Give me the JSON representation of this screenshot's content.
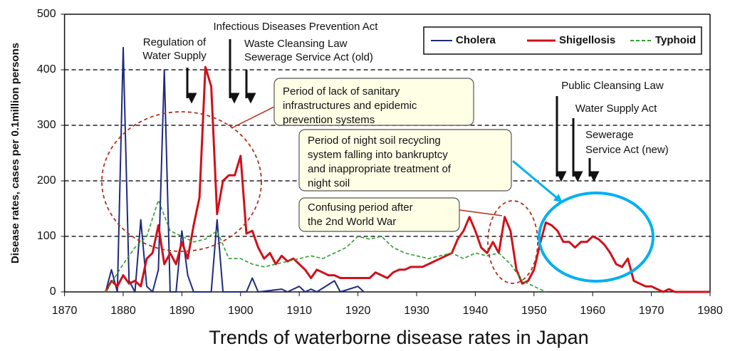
{
  "chart_data": {
    "type": "line",
    "title": "Trends of waterborne disease rates in Japan",
    "y_label": "Disease rates, cases per 0.1million persons",
    "xlim": [
      1870,
      1980
    ],
    "xticks": [
      1870,
      1880,
      1890,
      1900,
      1910,
      1920,
      1930,
      1940,
      1950,
      1960,
      1970,
      1980
    ],
    "ylim": [
      0,
      500
    ],
    "yticks": [
      0,
      100,
      200,
      300,
      400,
      500
    ],
    "grid": true,
    "series": [
      {
        "name": "Cholera",
        "color": "#1f2a80",
        "style": "solid",
        "x": [
          1877,
          1878,
          1879,
          1880,
          1881,
          1882,
          1883,
          1884,
          1885,
          1886,
          1887,
          1888,
          1889,
          1890,
          1891,
          1892,
          1895,
          1896,
          1897,
          1901,
          1902,
          1903,
          1907,
          1908,
          1910,
          1911,
          1912,
          1913,
          1916,
          1917,
          1920,
          1921
        ],
        "values": [
          0,
          40,
          0,
          440,
          20,
          0,
          130,
          10,
          0,
          40,
          400,
          0,
          0,
          110,
          30,
          0,
          0,
          130,
          0,
          0,
          25,
          0,
          5,
          0,
          10,
          0,
          5,
          0,
          20,
          0,
          10,
          0
        ]
      },
      {
        "name": "Shigellosis",
        "color": "#d0101a",
        "style": "solid",
        "x": [
          1877,
          1878,
          1879,
          1880,
          1881,
          1882,
          1883,
          1884,
          1885,
          1886,
          1887,
          1888,
          1889,
          1890,
          1891,
          1892,
          1893,
          1894,
          1895,
          1896,
          1897,
          1898,
          1899,
          1900,
          1901,
          1902,
          1903,
          1904,
          1905,
          1906,
          1907,
          1908,
          1909,
          1910,
          1911,
          1912,
          1913,
          1914,
          1915,
          1916,
          1917,
          1918,
          1919,
          1920,
          1921,
          1922,
          1923,
          1924,
          1925,
          1926,
          1927,
          1928,
          1929,
          1930,
          1931,
          1932,
          1933,
          1934,
          1935,
          1936,
          1937,
          1938,
          1939,
          1940,
          1941,
          1942,
          1943,
          1944,
          1945,
          1946,
          1947,
          1948,
          1949,
          1950,
          1951,
          1952,
          1953,
          1954,
          1955,
          1956,
          1957,
          1958,
          1959,
          1960,
          1961,
          1962,
          1963,
          1964,
          1965,
          1966,
          1967,
          1968,
          1969,
          1970,
          1971,
          1972,
          1973,
          1974,
          1980
        ],
        "values": [
          0,
          20,
          10,
          30,
          15,
          20,
          10,
          60,
          70,
          120,
          50,
          70,
          50,
          90,
          60,
          120,
          170,
          405,
          370,
          140,
          200,
          210,
          210,
          245,
          105,
          110,
          80,
          60,
          70,
          50,
          65,
          55,
          60,
          50,
          40,
          25,
          40,
          35,
          30,
          30,
          25,
          25,
          25,
          25,
          25,
          25,
          35,
          30,
          25,
          35,
          40,
          40,
          45,
          45,
          45,
          50,
          55,
          60,
          65,
          70,
          95,
          110,
          135,
          110,
          80,
          70,
          90,
          70,
          135,
          110,
          40,
          15,
          20,
          40,
          85,
          125,
          120,
          110,
          90,
          90,
          80,
          90,
          90,
          100,
          95,
          85,
          70,
          50,
          45,
          60,
          20,
          15,
          10,
          10,
          5,
          0,
          5,
          0,
          0
        ]
      },
      {
        "name": "Typhoid",
        "color": "#2ca02c",
        "style": "dashed",
        "x": [
          1877,
          1880,
          1882,
          1884,
          1886,
          1888,
          1890,
          1892,
          1894,
          1896,
          1898,
          1900,
          1902,
          1904,
          1906,
          1908,
          1910,
          1912,
          1914,
          1916,
          1918,
          1920,
          1922,
          1924,
          1926,
          1928,
          1930,
          1932,
          1934,
          1936,
          1938,
          1940,
          1942,
          1944,
          1946,
          1948,
          1950,
          1952
        ],
        "values": [
          0,
          50,
          80,
          100,
          165,
          110,
          100,
          90,
          95,
          110,
          60,
          60,
          50,
          45,
          50,
          55,
          60,
          65,
          60,
          70,
          80,
          100,
          95,
          100,
          80,
          70,
          65,
          60,
          65,
          70,
          60,
          70,
          65,
          70,
          50,
          20,
          10,
          0
        ]
      }
    ],
    "annotations": [
      {
        "lines": [
          "Infectious Diseases Prevention Act"
        ]
      },
      {
        "lines": [
          "Regulation of",
          "Water Supply"
        ]
      },
      {
        "lines": [
          "Waste Cleansing Law",
          "Sewerage Service Act (old)"
        ]
      },
      {
        "lines": [
          "Period of lack of sanitary",
          "infrastructures and epidemic",
          "prevention systems"
        ]
      },
      {
        "lines": [
          "Public Cleansing Law"
        ]
      },
      {
        "lines": [
          "Water Supply Act"
        ]
      },
      {
        "lines": [
          "Sewerage",
          "Service Act (new)"
        ]
      },
      {
        "lines": [
          "Period of night soil recycling",
          "system falling into bankruptcy",
          "and inappropriate treatment of",
          "night soil"
        ]
      },
      {
        "lines": [
          "Confusing period after",
          "the 2nd World War"
        ]
      }
    ]
  }
}
